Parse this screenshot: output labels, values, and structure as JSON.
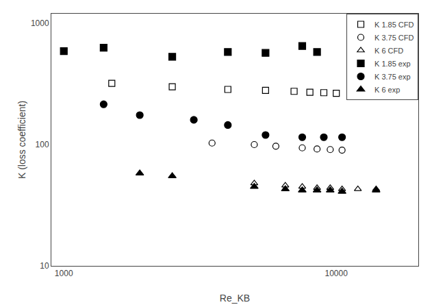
{
  "chart_data": {
    "type": "scatter",
    "xlabel": "Re_KB",
    "ylabel": "K (loss coefficient)",
    "log": true,
    "grid": false,
    "legend": "upper right",
    "xlim": [
      900,
      20000
    ],
    "ylim": [
      10,
      1200
    ],
    "xticks": [
      1000,
      10000
    ],
    "yticks": [
      10,
      100,
      1000
    ],
    "series": [
      {
        "name": "K 1.85 CFD",
        "color": "black",
        "marker": "square-open",
        "x": [
          1500,
          2500,
          4000,
          5500,
          7000,
          8000,
          9000,
          10000
        ],
        "values": [
          320,
          300,
          285,
          280,
          275,
          270,
          268,
          265
        ]
      },
      {
        "name": "K 3.75 CFD",
        "color": "black",
        "marker": "circle-open",
        "x": [
          3500,
          5000,
          6000,
          7500,
          8500,
          9500,
          10500
        ],
        "values": [
          103,
          100,
          97,
          94,
          92,
          91,
          90
        ]
      },
      {
        "name": "K 6 CFD",
        "color": "black",
        "marker": "triangle-up-open",
        "x": [
          5000,
          6500,
          7500,
          8500,
          9500,
          10500,
          12000,
          14000
        ],
        "values": [
          48,
          46,
          45,
          44,
          44,
          43,
          43,
          43
        ]
      },
      {
        "name": "K 1.85 exp",
        "color": "black",
        "marker": "square",
        "x": [
          1000,
          1400,
          2500,
          4000,
          5500,
          7500,
          8500
        ],
        "values": [
          590,
          630,
          530,
          580,
          570,
          650,
          580
        ]
      },
      {
        "name": "K 3.75 exp",
        "color": "black",
        "marker": "circle",
        "x": [
          1400,
          1900,
          3000,
          4000,
          5500,
          7500,
          9000,
          10500
        ],
        "values": [
          215,
          175,
          160,
          145,
          120,
          115,
          115,
          115
        ]
      },
      {
        "name": "K 6 exp",
        "color": "black",
        "marker": "triangle-up",
        "x": [
          1900,
          2500,
          5000,
          6500,
          7500,
          8500,
          9500,
          10500,
          14000
        ],
        "values": [
          58,
          55,
          45,
          43,
          42,
          42,
          42,
          41,
          42
        ]
      }
    ]
  }
}
